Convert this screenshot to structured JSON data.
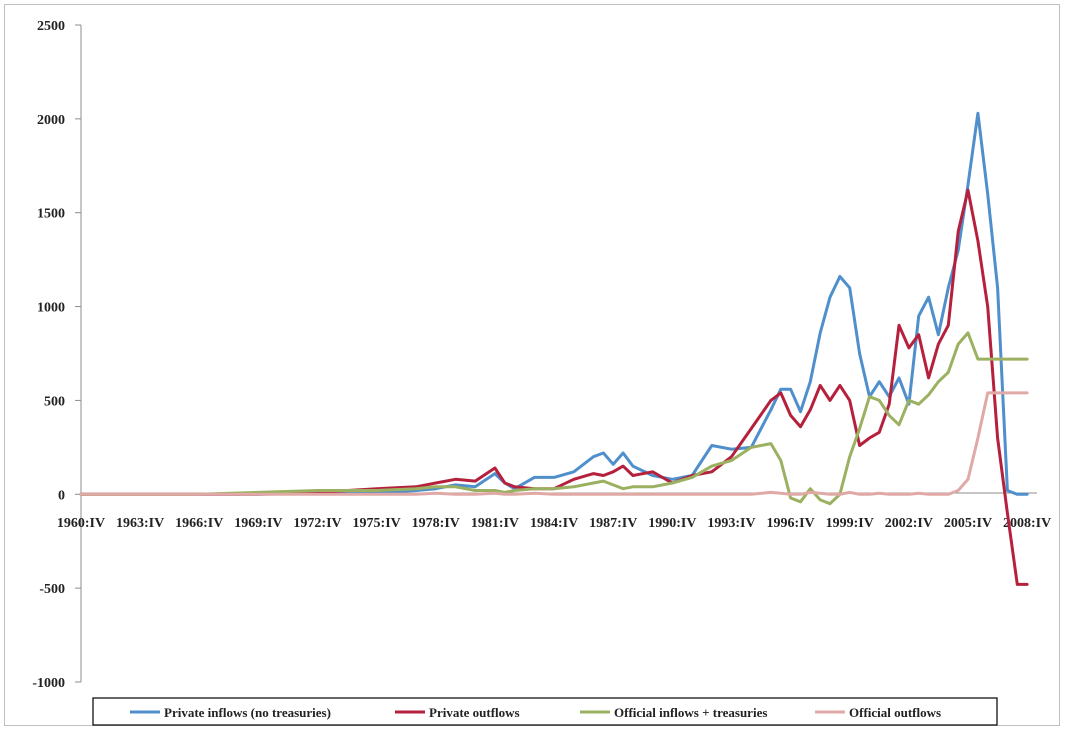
{
  "chart_data": {
    "type": "line",
    "title": "",
    "xlabel": "",
    "ylabel": "",
    "ylim": [
      -1000,
      2500
    ],
    "yticks": [
      2500,
      2000,
      1500,
      1000,
      500,
      0,
      -500,
      -1000
    ],
    "xticks": [
      "1960:IV",
      "1963:IV",
      "1966:IV",
      "1969:IV",
      "1972:IV",
      "1975:IV",
      "1978:IV",
      "1981:IV",
      "1984:IV",
      "1987:IV",
      "1990:IV",
      "1993:IV",
      "1996:IV",
      "1999:IV",
      "2002:IV",
      "2005:IV",
      "2008:IV"
    ],
    "legend_position": "bottom",
    "grid": false,
    "x": [
      1960.75,
      1963.75,
      1966.75,
      1969.75,
      1972.75,
      1975.75,
      1977.75,
      1978.75,
      1979.75,
      1980.75,
      1981.75,
      1982.25,
      1982.75,
      1983.75,
      1984.75,
      1985.75,
      1986.75,
      1987.25,
      1987.75,
      1988.25,
      1988.75,
      1989.75,
      1990.75,
      1991.75,
      1992.75,
      1993.75,
      1994.75,
      1995.75,
      1996.25,
      1996.75,
      1997.25,
      1997.75,
      1998.25,
      1998.75,
      1999.25,
      1999.75,
      2000.25,
      2000.75,
      2001.25,
      2001.75,
      2002.25,
      2002.75,
      2003.25,
      2003.75,
      2004.25,
      2004.75,
      2005.25,
      2005.75,
      2006.25,
      2006.75,
      2007.25,
      2007.75,
      2008.25,
      2008.75
    ],
    "series": [
      {
        "name": "Private inflows (no treasuries)",
        "color": "#4f8fcb",
        "values": [
          0,
          0,
          0,
          0,
          5,
          10,
          20,
          30,
          50,
          40,
          110,
          60,
          30,
          90,
          90,
          120,
          200,
          220,
          160,
          220,
          150,
          100,
          80,
          100,
          260,
          240,
          250,
          450,
          560,
          560,
          440,
          600,
          860,
          1050,
          1160,
          1100,
          750,
          520,
          600,
          520,
          620,
          480,
          950,
          1050,
          850,
          1100,
          1300,
          1650,
          2030,
          1600,
          1100,
          20,
          0,
          0
        ]
      },
      {
        "name": "Private outflows",
        "color": "#b5203c",
        "values": [
          0,
          0,
          0,
          0,
          10,
          30,
          40,
          60,
          80,
          70,
          140,
          60,
          40,
          30,
          30,
          80,
          110,
          100,
          120,
          150,
          100,
          120,
          60,
          100,
          120,
          200,
          350,
          500,
          540,
          420,
          360,
          450,
          580,
          500,
          580,
          500,
          260,
          300,
          330,
          480,
          900,
          780,
          850,
          620,
          800,
          900,
          1400,
          1620,
          1350,
          1000,
          300,
          -100,
          -480,
          -480
        ]
      },
      {
        "name": "Official inflows + treasuries",
        "color": "#9bb161",
        "values": [
          0,
          0,
          0,
          10,
          20,
          20,
          30,
          40,
          40,
          20,
          20,
          10,
          20,
          30,
          30,
          40,
          60,
          70,
          50,
          30,
          40,
          40,
          60,
          90,
          150,
          180,
          250,
          270,
          180,
          -20,
          -40,
          30,
          -30,
          -50,
          0,
          200,
          350,
          520,
          500,
          420,
          370,
          500,
          480,
          530,
          600,
          650,
          800,
          860,
          720,
          720,
          720,
          720,
          720,
          720
        ]
      },
      {
        "name": "Official outflows",
        "color": "#e0a9a6",
        "values": [
          0,
          0,
          0,
          0,
          0,
          0,
          0,
          5,
          0,
          0,
          5,
          0,
          0,
          5,
          0,
          0,
          0,
          0,
          0,
          0,
          0,
          0,
          0,
          0,
          0,
          0,
          0,
          10,
          5,
          0,
          0,
          10,
          5,
          0,
          0,
          10,
          0,
          0,
          5,
          0,
          0,
          0,
          5,
          0,
          0,
          0,
          20,
          80,
          300,
          540,
          540,
          540,
          540,
          540
        ]
      }
    ]
  }
}
